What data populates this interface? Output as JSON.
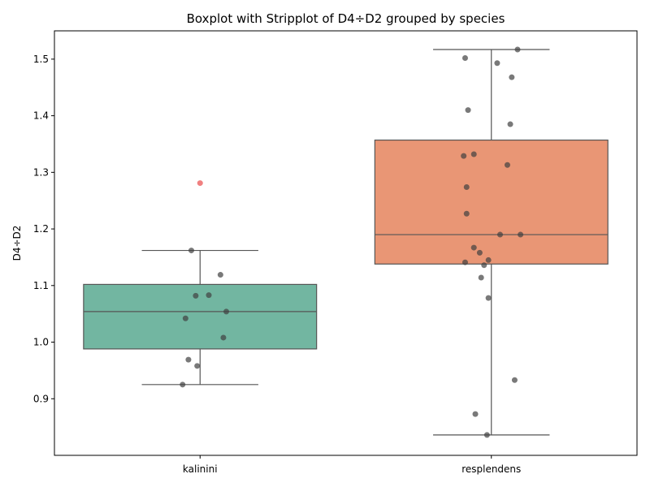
{
  "chart_data": {
    "type": "boxplot",
    "title": "Boxplot with Stripplot of D4÷D2 grouped by species",
    "xlabel": "",
    "ylabel": "D4÷D2",
    "ylim": [
      0.8,
      1.55
    ],
    "yticks": [
      0.9,
      1.0,
      1.1,
      1.2,
      1.3,
      1.4,
      1.5
    ],
    "ytick_labels": [
      "0.9",
      "1.0",
      "1.1",
      "1.2",
      "1.3",
      "1.4",
      "1.5"
    ],
    "grid": false,
    "legend": "none",
    "categories": [
      "kalinini",
      "resplendens"
    ],
    "colors": {
      "boxes": [
        "#72b6a1",
        "#e99675"
      ],
      "box_edge": "#555555",
      "points": "#404040",
      "outlier": "#f08080"
    },
    "boxes": [
      {
        "category": "kalinini",
        "whisker_low": 0.925,
        "q1": 0.988,
        "median": 1.054,
        "q3": 1.102,
        "whisker_high": 1.162,
        "outliers": [
          1.281
        ]
      },
      {
        "category": "resplendens",
        "whisker_low": 0.836,
        "q1": 1.138,
        "median": 1.19,
        "q3": 1.357,
        "whisker_high": 1.517,
        "outliers": []
      }
    ],
    "points": [
      {
        "category": "kalinini",
        "values": [
          1.162,
          1.119,
          1.083,
          1.082,
          1.054,
          1.042,
          1.008,
          0.969,
          0.958,
          0.925
        ],
        "jitter": [
          -0.03,
          0.07,
          0.03,
          -0.015,
          0.09,
          -0.05,
          0.08,
          -0.04,
          -0.01,
          -0.06
        ]
      },
      {
        "category": "resplendens",
        "values": [
          1.517,
          1.502,
          1.493,
          1.468,
          1.41,
          1.385,
          1.332,
          1.329,
          1.313,
          1.274,
          1.227,
          1.19,
          1.19,
          1.167,
          1.158,
          1.145,
          1.141,
          1.136,
          1.114,
          1.078,
          0.933,
          0.873,
          0.836
        ],
        "jitter": [
          0.09,
          -0.09,
          0.02,
          0.07,
          -0.08,
          0.065,
          -0.06,
          -0.095,
          0.055,
          -0.085,
          -0.085,
          0.03,
          0.1,
          -0.06,
          -0.04,
          -0.01,
          -0.09,
          -0.025,
          -0.035,
          -0.01,
          0.08,
          -0.055,
          -0.015
        ]
      }
    ]
  }
}
